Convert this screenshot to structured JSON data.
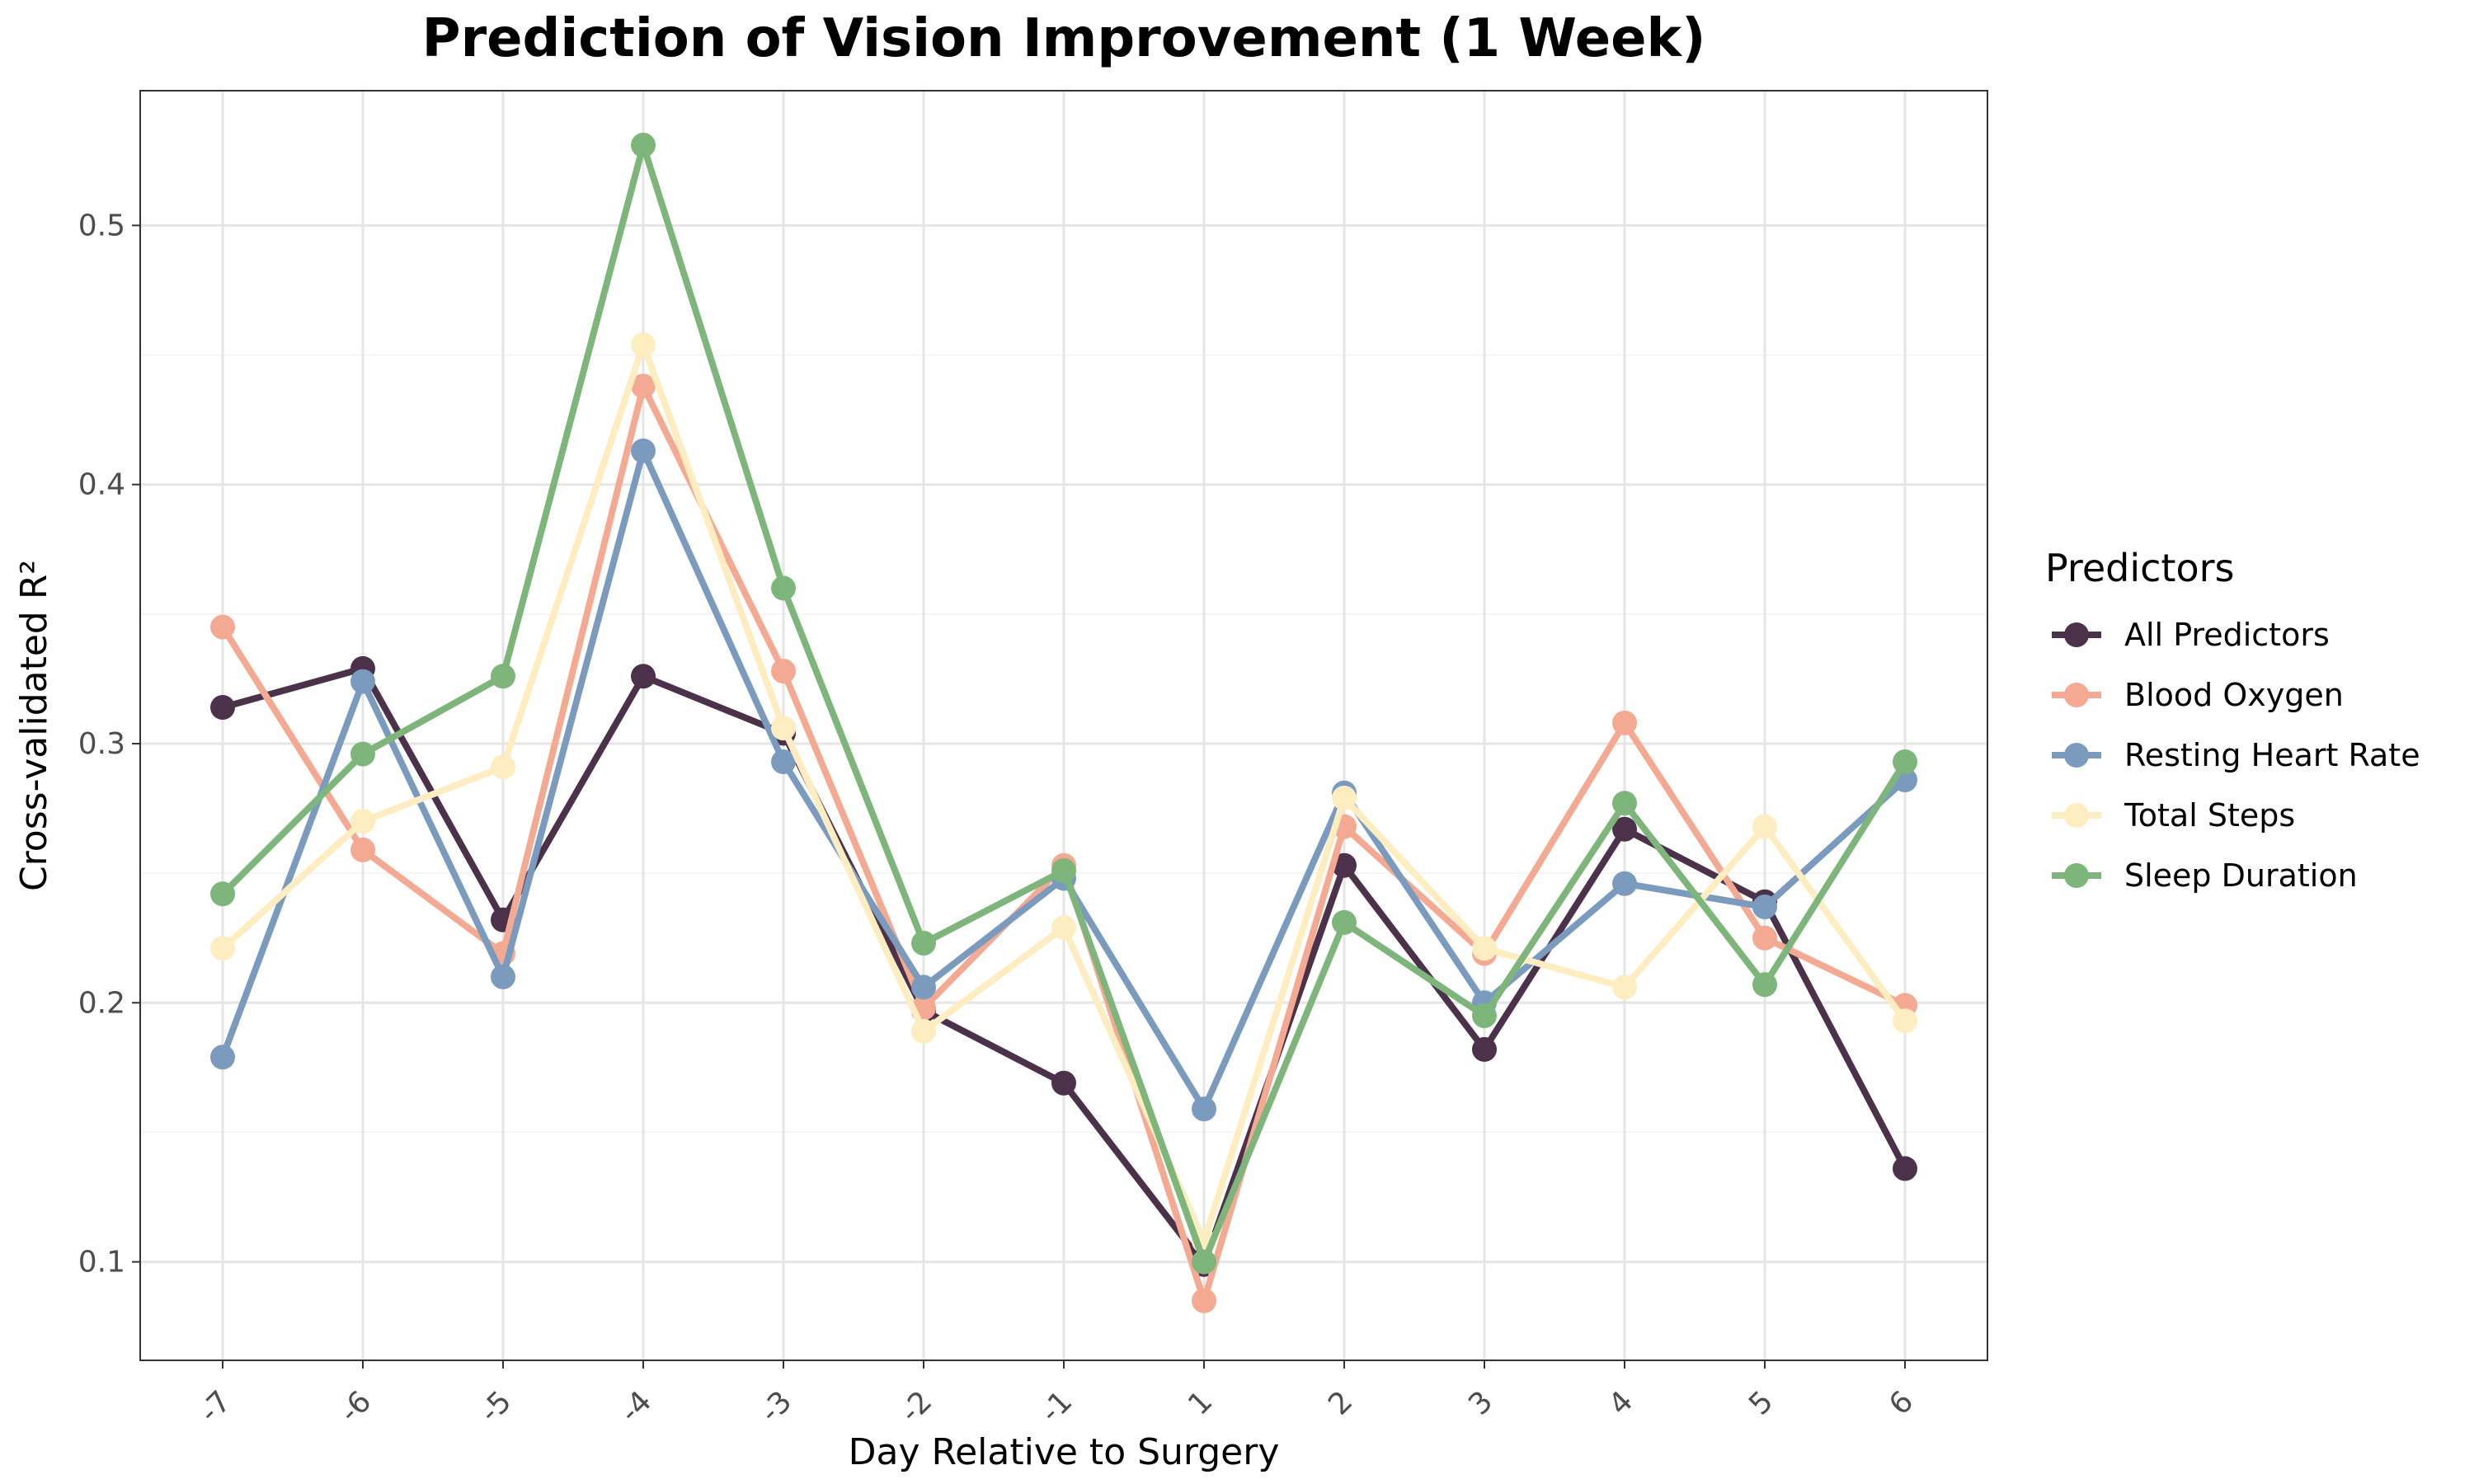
{
  "chart_data": {
    "type": "line",
    "title": "Prediction of Vision Improvement (1 Week)",
    "xlabel": "Day Relative to Surgery",
    "ylabel": "Cross-validated R²",
    "categories": [
      "-7",
      "-6",
      "-5",
      "-4",
      "-3",
      "-2",
      "-1",
      "1",
      "2",
      "3",
      "4",
      "5",
      "6"
    ],
    "yticks": [
      "0.1",
      "0.2",
      "0.3",
      "0.4",
      "0.5"
    ],
    "ylim": [
      0.062,
      0.552
    ],
    "grid": true,
    "legend": {
      "title": "Predictors",
      "placement": "right"
    },
    "series": [
      {
        "name": "All Predictors",
        "color": "#4b3149",
        "values": [
          0.314,
          0.329,
          0.232,
          0.326,
          0.304,
          0.197,
          0.169,
          0.099,
          0.253,
          0.182,
          0.267,
          0.239,
          0.136
        ]
      },
      {
        "name": "Blood Oxygen",
        "color": "#f4a992",
        "values": [
          0.345,
          0.259,
          0.219,
          0.438,
          0.328,
          0.198,
          0.253,
          0.085,
          0.268,
          0.219,
          0.308,
          0.225,
          0.199
        ]
      },
      {
        "name": "Resting Heart Rate",
        "color": "#7b9bbe",
        "values": [
          0.179,
          0.324,
          0.21,
          0.413,
          0.293,
          0.206,
          0.248,
          0.159,
          0.281,
          0.2,
          0.246,
          0.237,
          0.286
        ]
      },
      {
        "name": "Total Steps",
        "color": "#feedc0",
        "values": [
          0.221,
          0.27,
          0.291,
          0.454,
          0.306,
          0.189,
          0.229,
          0.108,
          0.279,
          0.221,
          0.206,
          0.268,
          0.193
        ]
      },
      {
        "name": "Sleep Duration",
        "color": "#7db57a",
        "values": [
          0.242,
          0.296,
          0.326,
          0.531,
          0.36,
          0.223,
          0.251,
          0.1,
          0.231,
          0.195,
          0.277,
          0.207,
          0.293
        ]
      }
    ]
  }
}
